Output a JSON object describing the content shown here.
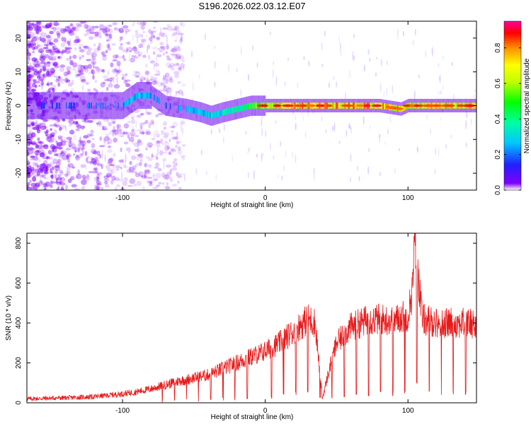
{
  "figure": {
    "title": "S196.2026.022.03.12.E07",
    "colors": {
      "snr_line": "#e8191a",
      "frame": "#000000"
    }
  },
  "chart_data": [
    {
      "type": "heatmap",
      "xlabel": "Height of straight line (km)",
      "ylabel": "Frequency (Hz)",
      "xlim": [
        -167,
        148
      ],
      "ylim": [
        -25,
        25
      ],
      "x_ticks": [
        -100,
        0,
        100
      ],
      "y_ticks": [
        -20,
        -10,
        0,
        10,
        20
      ],
      "colorbar": {
        "label": "Normalized spectral amplitude",
        "range": [
          0,
          0.95
        ],
        "ticks": [
          "0.0",
          "0.2",
          "0.4",
          "0.6",
          "0.8"
        ],
        "tick_values": [
          0,
          0.2,
          0.4,
          0.6,
          0.8
        ]
      },
      "ridge": {
        "x": [
          -167,
          -100,
          -90,
          -80,
          -70,
          -55,
          -45,
          -38,
          -30,
          -20,
          -10,
          0,
          5,
          20,
          40,
          60,
          80,
          95,
          100,
          120,
          148
        ],
        "freq_hz": [
          0,
          0,
          3,
          3,
          0,
          -1,
          -2,
          -3,
          -2,
          -1,
          0,
          0,
          0,
          0,
          0,
          0,
          0,
          -1,
          0,
          0,
          0
        ],
        "peak_amplitude": [
          0.15,
          0.3,
          0.35,
          0.3,
          0.25,
          0.3,
          0.35,
          0.35,
          0.4,
          0.5,
          0.6,
          0.75,
          0.85,
          0.9,
          0.9,
          0.92,
          0.92,
          0.85,
          0.8,
          0.9,
          0.85
        ]
      }
    },
    {
      "type": "line",
      "xlabel": "Height of straight line (km)",
      "ylabel": "SNR (10 * v/v)",
      "xlim": [
        -167,
        148
      ],
      "ylim": [
        0,
        850
      ],
      "x_ticks": [
        -100,
        0,
        100
      ],
      "y_ticks": [
        0,
        200,
        400,
        600,
        800
      ],
      "series": [
        {
          "name": "SNR",
          "x": [
            -167,
            -140,
            -120,
            -100,
            -90,
            -80,
            -70,
            -60,
            -50,
            -40,
            -30,
            -20,
            -10,
            0,
            10,
            20,
            30,
            35,
            40,
            45,
            50,
            60,
            70,
            80,
            90,
            95,
            100,
            103,
            105,
            110,
            120,
            130,
            140,
            148
          ],
          "y": [
            20,
            25,
            30,
            45,
            55,
            70,
            90,
            110,
            125,
            140,
            170,
            200,
            230,
            260,
            300,
            360,
            420,
            400,
            20,
            170,
            300,
            380,
            410,
            420,
            410,
            430,
            440,
            560,
            820,
            420,
            400,
            400,
            400,
            400
          ]
        }
      ]
    }
  ]
}
